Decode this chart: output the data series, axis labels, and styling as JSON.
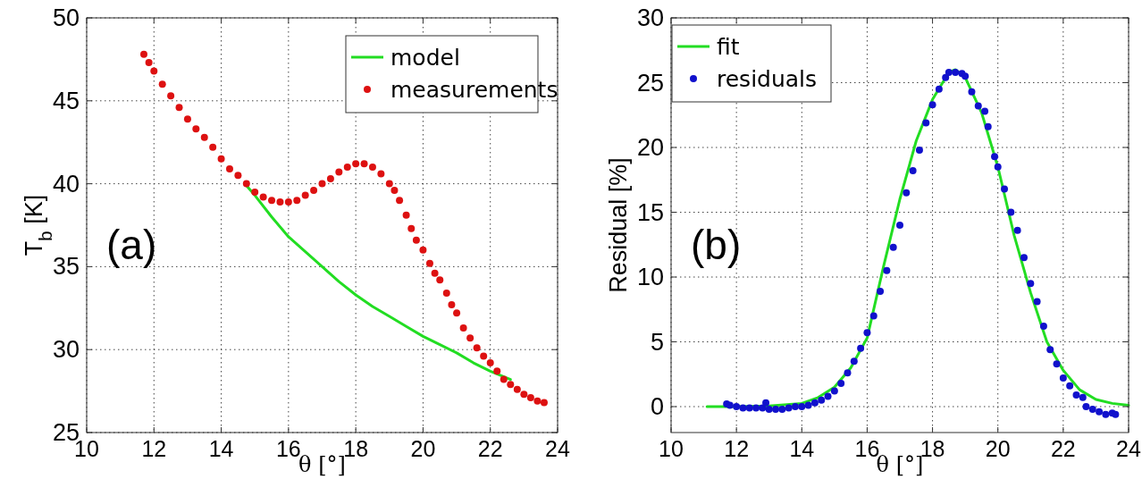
{
  "chart_data": [
    {
      "type": "scatter",
      "xlabel": "θ [°]",
      "ylabel": "T$_{b}$ [K]",
      "annotations": [
        "(a)"
      ],
      "xlim": [
        10,
        24
      ],
      "ylim": [
        25,
        50
      ],
      "xticks": [
        10,
        12,
        14,
        16,
        18,
        20,
        22,
        24
      ],
      "yticks": [
        25,
        30,
        35,
        40,
        45,
        50
      ],
      "grid": true,
      "legend": "top right",
      "series": [
        {
          "name": "model",
          "type": "line",
          "color": "#22dd22",
          "line_style": "solid",
          "x": [
            14.7,
            15,
            15.5,
            16,
            16.5,
            17,
            17.5,
            18,
            18.5,
            19,
            19.5,
            20,
            20.5,
            21,
            21.5,
            22,
            22.6
          ],
          "values": [
            40,
            39.3,
            38,
            36.8,
            35.9,
            35,
            34.1,
            33.3,
            32.6,
            32,
            31.4,
            30.8,
            30.3,
            29.8,
            29.2,
            28.7,
            28.2
          ]
        },
        {
          "name": "measurements",
          "color": "#dd1111",
          "marker": "circle",
          "x": [
            11.7,
            11.85,
            12,
            12.25,
            12.5,
            12.75,
            13,
            13.25,
            13.5,
            13.75,
            14,
            14.25,
            14.5,
            14.75,
            15,
            15.25,
            15.5,
            15.75,
            16,
            16.25,
            16.5,
            16.75,
            17,
            17.25,
            17.5,
            17.75,
            18,
            18.25,
            18.5,
            18.75,
            19,
            19.15,
            19.3,
            19.5,
            19.65,
            19.8,
            20,
            20.2,
            20.35,
            20.5,
            20.7,
            20.85,
            21,
            21.2,
            21.4,
            21.6,
            21.8,
            22,
            22.2,
            22.4,
            22.6,
            22.8,
            23,
            23.2,
            23.4,
            23.6
          ],
          "values": [
            47.8,
            47.3,
            46.8,
            46,
            45.3,
            44.6,
            43.9,
            43.3,
            42.8,
            42.2,
            41.5,
            40.9,
            40.5,
            40,
            39.5,
            39.2,
            39,
            38.9,
            38.9,
            39,
            39.3,
            39.6,
            40,
            40.3,
            40.7,
            41,
            41.2,
            41.2,
            41,
            40.6,
            40,
            39.6,
            39,
            38.1,
            37.3,
            36.6,
            36,
            35.2,
            34.6,
            34.2,
            33.4,
            32.7,
            32.2,
            31.3,
            30.7,
            30.1,
            29.6,
            29.2,
            28.7,
            28.2,
            27.9,
            27.6,
            27.3,
            27.1,
            26.9,
            26.8
          ]
        }
      ]
    },
    {
      "type": "scatter",
      "xlabel": "θ [°]",
      "ylabel": "Residual [%]",
      "annotations": [
        "(b)"
      ],
      "xlim": [
        10,
        24
      ],
      "ylim": [
        -2,
        30
      ],
      "xticks": [
        10,
        12,
        14,
        16,
        18,
        20,
        22,
        24
      ],
      "yticks": [
        0,
        5,
        10,
        15,
        20,
        25,
        30
      ],
      "grid": true,
      "legend": "top left",
      "series": [
        {
          "name": "fit",
          "type": "line",
          "color": "#22dd22",
          "line_style": "solid",
          "x": [
            11.1,
            12,
            13,
            14,
            14.5,
            15,
            15.5,
            16,
            16.5,
            17,
            17.5,
            18,
            18.5,
            18.7,
            19,
            19.5,
            20,
            20.5,
            21,
            21.5,
            22,
            22.5,
            23,
            23.5,
            24
          ],
          "values": [
            0,
            0,
            0.05,
            0.25,
            0.7,
            1.5,
            3,
            5.3,
            10.8,
            16,
            20.5,
            23.7,
            25.8,
            26,
            25.4,
            22.7,
            18.5,
            13.2,
            8.8,
            5,
            2.8,
            1.3,
            0.55,
            0.25,
            0.1
          ]
        },
        {
          "name": "residuals",
          "color": "#1111cc",
          "marker": "circle",
          "x": [
            11.7,
            11.8,
            12,
            12.2,
            12.4,
            12.6,
            12.8,
            12.9,
            13,
            13.2,
            13.4,
            13.6,
            13.8,
            14,
            14.2,
            14.4,
            14.6,
            14.8,
            15,
            15.2,
            15.4,
            15.6,
            15.8,
            16,
            16.2,
            16.4,
            16.6,
            16.8,
            17,
            17.2,
            17.4,
            17.6,
            17.8,
            18,
            18.2,
            18.4,
            18.5,
            18.7,
            18.9,
            19,
            19.2,
            19.4,
            19.6,
            19.7,
            19.9,
            20,
            20.2,
            20.4,
            20.6,
            20.8,
            21,
            21.2,
            21.4,
            21.6,
            21.8,
            22,
            22.2,
            22.4,
            22.6,
            22.7,
            22.9,
            23.1,
            23.3,
            23.5,
            23.6
          ],
          "values": [
            0.2,
            0.1,
            0,
            -0.1,
            -0.1,
            -0.1,
            -0.1,
            0.3,
            -0.2,
            -0.2,
            -0.2,
            -0.1,
            0,
            0,
            0.1,
            0.3,
            0.5,
            0.8,
            1.2,
            1.8,
            2.6,
            3.5,
            4.5,
            5.7,
            7,
            8.9,
            10.5,
            12.3,
            14,
            16.5,
            18.2,
            19.8,
            21.9,
            23.3,
            24.5,
            25.4,
            25.8,
            25.8,
            25.7,
            25.5,
            24.3,
            23.2,
            22.8,
            21.6,
            19.3,
            18.5,
            16.8,
            15,
            13.6,
            11.5,
            9.5,
            8.1,
            6.2,
            4.4,
            3.3,
            2.2,
            1.6,
            0.9,
            0.7,
            0,
            -0.2,
            -0.4,
            -0.6,
            -0.5,
            -0.6
          ]
        }
      ]
    }
  ]
}
